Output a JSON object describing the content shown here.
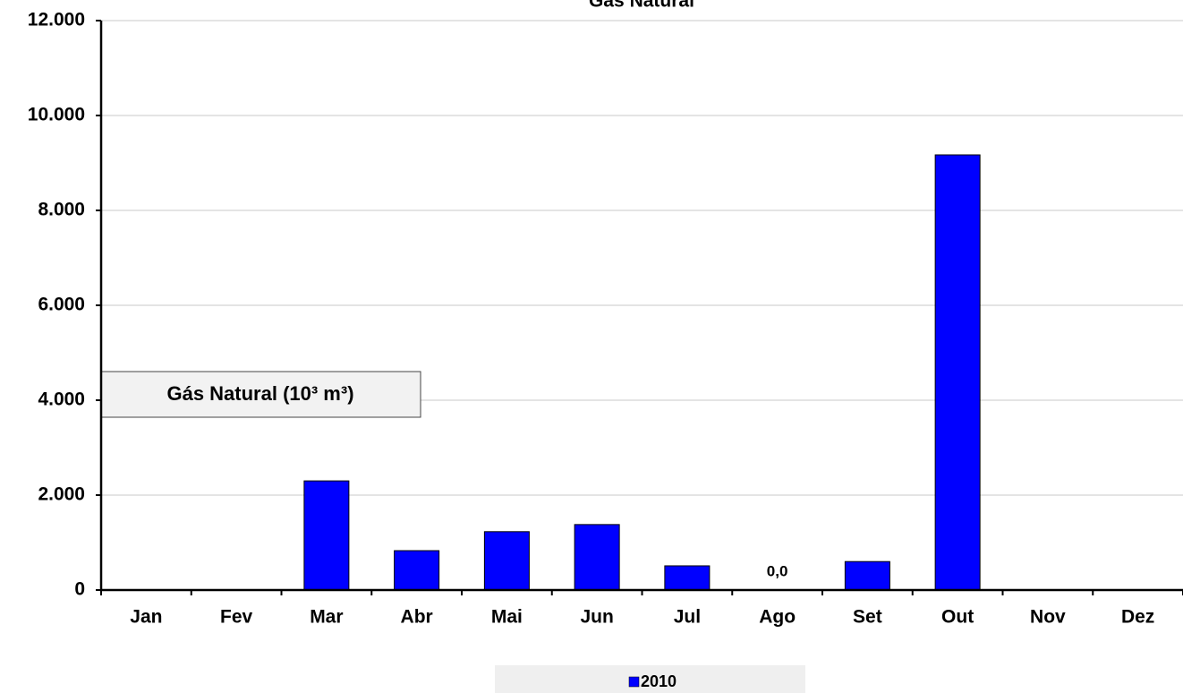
{
  "chart_data": {
    "type": "bar",
    "title": "Gás Natural",
    "annotation": "Gás Natural (10³ m³)",
    "categories": [
      "Jan",
      "Fev",
      "Mar",
      "Abr",
      "Mai",
      "Jun",
      "Jul",
      "Ago",
      "Set",
      "Out",
      "Nov",
      "Dez"
    ],
    "series": [
      {
        "name": "2010",
        "color": "#0000ff",
        "values": [
          null,
          null,
          2300,
          830,
          1230,
          1380,
          510,
          0,
          600,
          9170,
          null,
          null
        ],
        "value_labels": [
          null,
          null,
          null,
          null,
          null,
          null,
          null,
          "0,0",
          null,
          null,
          null,
          null
        ]
      }
    ],
    "ylim": [
      0,
      12000
    ],
    "yticks": [
      0,
      {
        "value": 2000,
        "label": "2.000"
      },
      {
        "value": 4000,
        "label": "4.000"
      },
      {
        "value": 6000,
        "label": "6.000"
      },
      {
        "value": 8000,
        "label": "8.000"
      },
      {
        "value": 10000,
        "label": "10.000"
      },
      {
        "value": 12000,
        "label": "12.000"
      }
    ],
    "grid": true,
    "legend": "bottom"
  }
}
